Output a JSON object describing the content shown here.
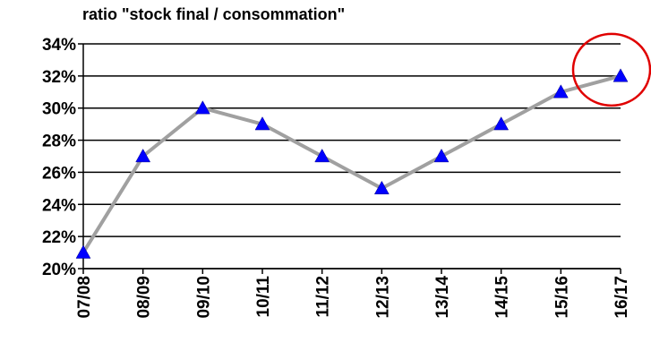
{
  "chart_data": {
    "type": "line",
    "title": "ratio \"stock final / consommation\"",
    "xlabel": "",
    "ylabel": "",
    "categories": [
      "07/08",
      "08/09",
      "09/10",
      "10/11",
      "11/12",
      "12/13",
      "13/14",
      "14/15",
      "15/16",
      "16/17"
    ],
    "series": [
      {
        "values": [
          21,
          27,
          30,
          29,
          27,
          25,
          27,
          29,
          31,
          32
        ]
      }
    ],
    "ylim": [
      20,
      34
    ],
    "yticks": [
      20,
      22,
      24,
      26,
      28,
      30,
      32,
      34
    ],
    "ytick_labels": [
      "20%",
      "22%",
      "24%",
      "26%",
      "28%",
      "30%",
      "32%",
      "34%"
    ],
    "grid": "horizontal",
    "line_color": "#a0a0a0",
    "marker": "triangle",
    "marker_color": "#0000ff",
    "highlight": {
      "category": "16/17",
      "shape": "circle",
      "color": "#e00000"
    }
  }
}
